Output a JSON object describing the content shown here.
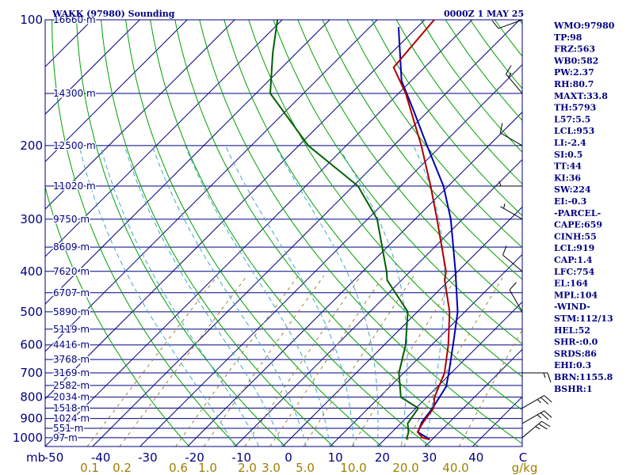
{
  "header": {
    "station": "WAKK (97980) Sounding",
    "time": "0000Z  1 MAY 25"
  },
  "colors": {
    "frame": "#000080",
    "isobar": "#000080",
    "isotherm": "#000080",
    "dry_adiabat": "#00a000",
    "moist_adiabat": "#40a8c8",
    "mixing_ratio": "#a08030",
    "temperature": "#b00000",
    "dewpoint": "#006000",
    "parcel": "#0000b0",
    "wind": "#000000",
    "text": "#000080",
    "mixing_label": "#a08000"
  },
  "chart_data": {
    "type": "skew-t",
    "pressure_axis": {
      "unit_label": "mb",
      "ticks": [
        100,
        200,
        300,
        400,
        500,
        600,
        700,
        800,
        900,
        1000
      ]
    },
    "temperature_axis": {
      "range": [
        -50,
        40
      ],
      "labels": [
        "-50",
        "-40",
        "-30",
        "-20",
        "-10",
        "0",
        "10",
        "20",
        "30",
        "40",
        "C"
      ]
    },
    "mixing_ratio_axis": {
      "labels": [
        "0.1",
        "0.2",
        "0.6",
        "1.0",
        "2.0",
        "3.0",
        "5.0",
        "10.0",
        "20.0",
        "40.0",
        "g/kg"
      ]
    },
    "heights": [
      {
        "p": 100,
        "label": "16660 m"
      },
      {
        "p": 150,
        "label": "14300 m"
      },
      {
        "p": 200,
        "label": "12500 m"
      },
      {
        "p": 250,
        "label": "11020 m"
      },
      {
        "p": 300,
        "label": "9750 m"
      },
      {
        "p": 350,
        "label": "8609 m"
      },
      {
        "p": 400,
        "label": "7620 m"
      },
      {
        "p": 450,
        "label": "6707 m"
      },
      {
        "p": 500,
        "label": "5890 m"
      },
      {
        "p": 550,
        "label": "5119 m"
      },
      {
        "p": 600,
        "label": "4416 m"
      },
      {
        "p": 650,
        "label": "3768 m"
      },
      {
        "p": 700,
        "label": "3169 m"
      },
      {
        "p": 750,
        "label": "2582 m"
      },
      {
        "p": 800,
        "label": "2034 m"
      },
      {
        "p": 850,
        "label": "1518 m"
      },
      {
        "p": 900,
        "label": "1024 m"
      },
      {
        "p": 950,
        "label": "551 m"
      },
      {
        "p": 1000,
        "label": "97 m"
      }
    ],
    "temperature": [
      [
        1010,
        29.5
      ],
      [
        1000,
        27.6
      ],
      [
        970,
        25.4
      ],
      [
        925,
        24.6
      ],
      [
        850,
        23.7
      ],
      [
        800,
        21.6
      ],
      [
        700,
        18.6
      ],
      [
        600,
        13.5
      ],
      [
        500,
        6.8
      ],
      [
        420,
        -0.9
      ],
      [
        400,
        -2.5
      ],
      [
        300,
        -15.4
      ],
      [
        250,
        -23.7
      ],
      [
        200,
        -34.2
      ],
      [
        150,
        -48.5
      ],
      [
        130,
        -56.5
      ],
      [
        100,
        -58.0
      ]
    ],
    "dewpoint": [
      [
        1010,
        24.6
      ],
      [
        970,
        23.5
      ],
      [
        925,
        21.5
      ],
      [
        850,
        20.5
      ],
      [
        800,
        14.5
      ],
      [
        700,
        9.0
      ],
      [
        600,
        4.5
      ],
      [
        500,
        -2.0
      ],
      [
        420,
        -13.0
      ],
      [
        400,
        -15.0
      ],
      [
        300,
        -28.0
      ],
      [
        250,
        -39.0
      ],
      [
        200,
        -58.0
      ],
      [
        150,
        -77.0
      ],
      [
        120,
        -85.0
      ],
      [
        100,
        -91.0
      ]
    ],
    "parcel": [
      [
        1010,
        29.5
      ],
      [
        970,
        25.5
      ],
      [
        919,
        24.2
      ],
      [
        850,
        23.5
      ],
      [
        754,
        21.8
      ],
      [
        700,
        19.5
      ],
      [
        600,
        14.5
      ],
      [
        500,
        8.5
      ],
      [
        400,
        -0.5
      ],
      [
        300,
        -12.5
      ],
      [
        250,
        -21.0
      ],
      [
        200,
        -33.0
      ],
      [
        164,
        -43.5
      ],
      [
        140,
        -52.0
      ],
      [
        104,
        -64.0
      ]
    ],
    "wind_barbs": [
      {
        "p": 100,
        "dir": 250,
        "spd": 10
      },
      {
        "p": 150,
        "dir": 320,
        "spd": 15
      },
      {
        "p": 200,
        "dir": 300,
        "spd": 10
      },
      {
        "p": 250,
        "dir": 270,
        "spd": 5
      },
      {
        "p": 300,
        "dir": 300,
        "spd": 5
      },
      {
        "p": 400,
        "dir": 310,
        "spd": 10
      },
      {
        "p": 500,
        "dir": 330,
        "spd": 10
      },
      {
        "p": 700,
        "dir": 90,
        "spd": 15
      },
      {
        "p": 850,
        "dir": 60,
        "spd": 25
      },
      {
        "p": 925,
        "dir": 60,
        "spd": 25
      },
      {
        "p": 1000,
        "dir": 50,
        "spd": 25
      }
    ],
    "isotherm_range": [
      -130,
      40
    ],
    "dry_adiabat_thetas_K": [
      250,
      260,
      270,
      280,
      290,
      300,
      310,
      320,
      330,
      340,
      350,
      360,
      370,
      380,
      390,
      400,
      410,
      420,
      430,
      440,
      450,
      460,
      470,
      480
    ],
    "moist_adiabat_start_C": [
      -10,
      -5,
      0,
      5,
      10,
      15,
      20,
      25,
      30
    ],
    "mixing_ratio_lines_gkg": [
      0.1,
      0.2,
      0.6,
      1.0,
      2.0,
      3.0,
      5.0,
      10.0,
      20.0,
      40.0
    ]
  },
  "indices": [
    "WMO:97980",
    "TP:98",
    "FRZ:563",
    "WB0:582",
    "PW:2.37",
    "RH:80.7",
    "MAXT:33.8",
    "TH:5793",
    "L57:5.5",
    "LCL:953",
    "LI:-2.4",
    "SI:0.5",
    "TT:44",
    "KI:36",
    "SW:224",
    "EI:-0.3",
    "-PARCEL-",
    "CAPE:659",
    "CINH:55",
    "LCL:919",
    "CAP:1.4",
    "LFC:754",
    "EL:164",
    "MPL:104",
    "-WIND-",
    "STM:112/13",
    "HEL:52",
    "SHR-:0.0",
    "SRDS:86",
    "EHI:0.3",
    "BRN:1155.8",
    "BSHR:1"
  ]
}
